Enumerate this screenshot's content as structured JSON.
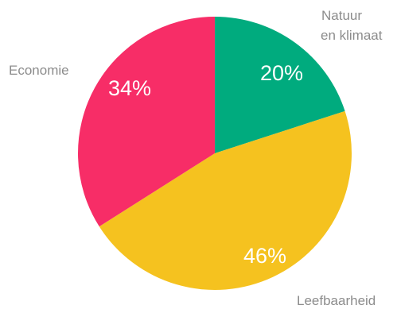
{
  "chart_data": {
    "type": "pie",
    "categories": [
      "Natuur en klimaat",
      "Leefbaarheid",
      "Economie"
    ],
    "values": [
      20,
      46,
      34
    ],
    "value_labels": [
      "20%",
      "46%",
      "34%"
    ],
    "category_labels": [
      [
        "Natuur",
        "en klimaat"
      ],
      [
        "Leefbaarheid"
      ],
      [
        "Economie"
      ]
    ],
    "colors": [
      "#00ab7e",
      "#f5c21f",
      "#f72d67"
    ],
    "start": "12 o'clock",
    "direction": "clockwise"
  }
}
